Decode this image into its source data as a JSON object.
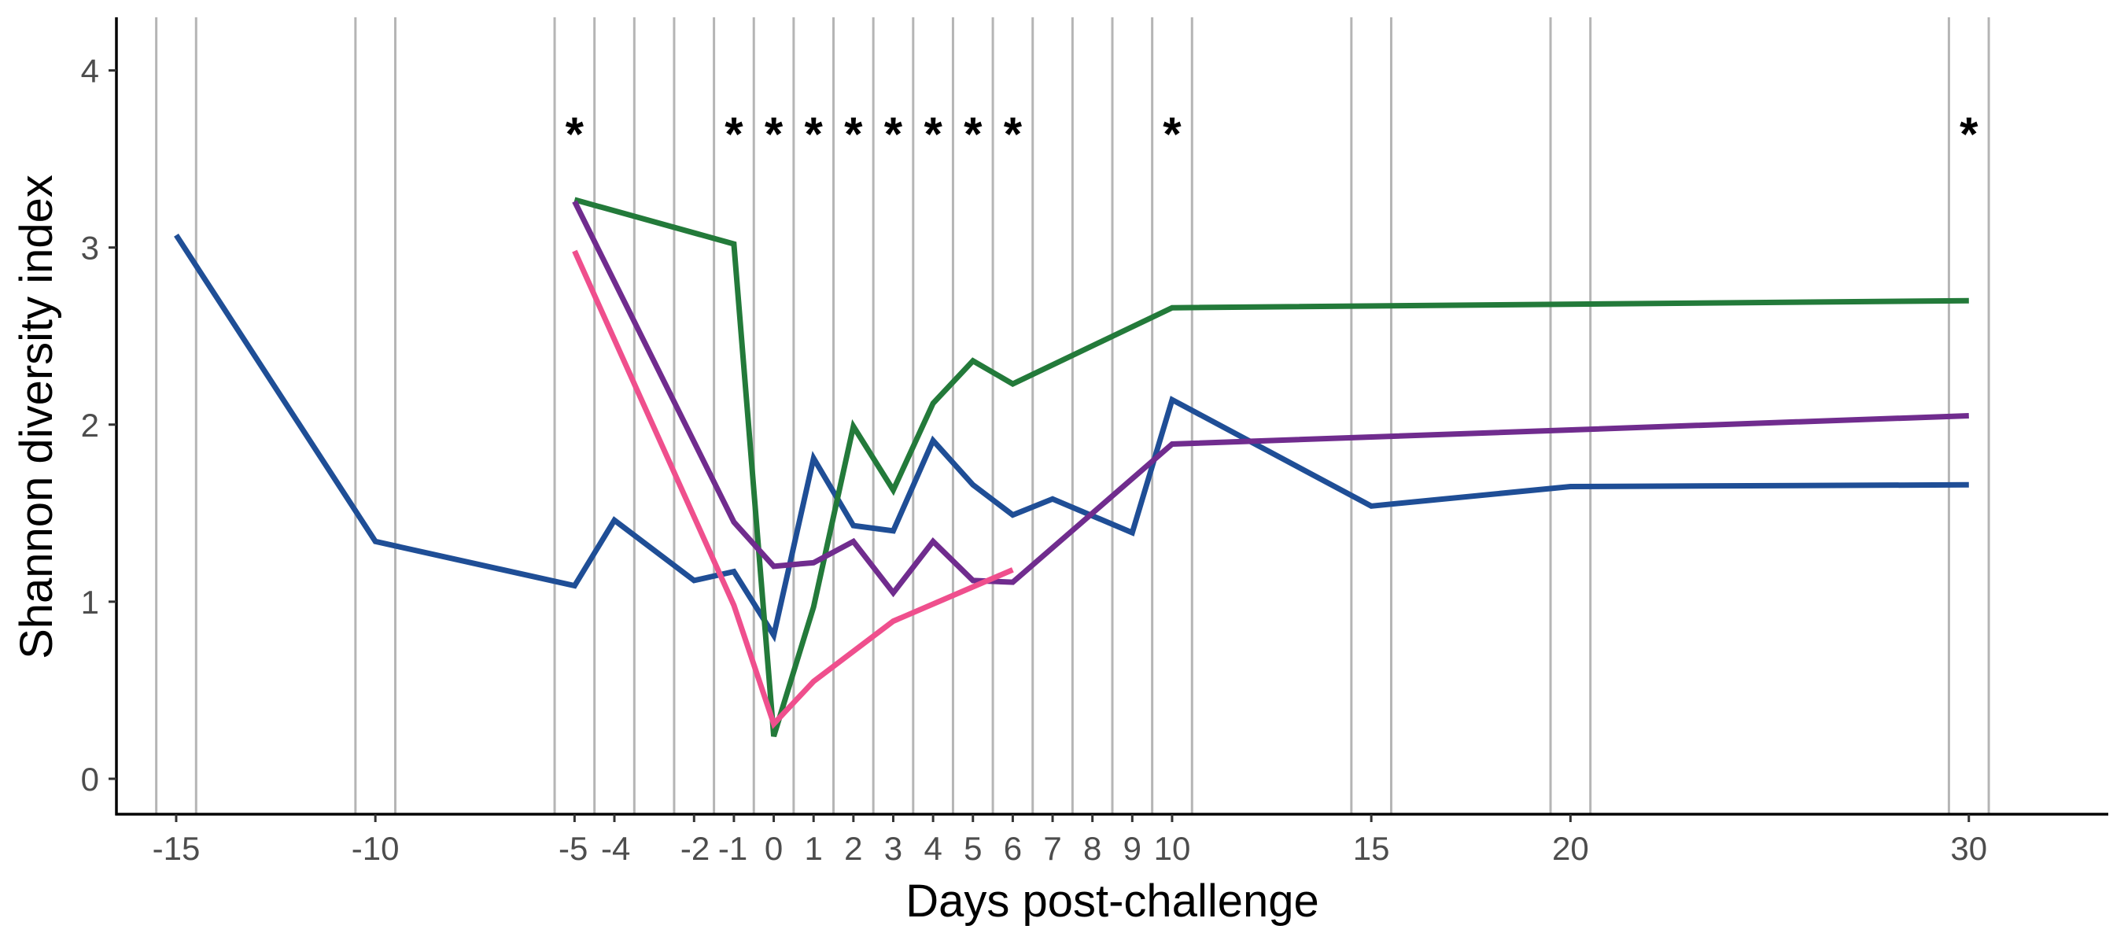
{
  "chart_data": {
    "type": "line",
    "title": "",
    "xlabel": "Days post-challenge",
    "ylabel": "Shannon diversity index",
    "xlim": [
      -16.5,
      33.5
    ],
    "ylim": [
      -0.2,
      4.3
    ],
    "x_axis_ticks": [
      {
        "label": "-15",
        "pos": -15
      },
      {
        "label": "-10",
        "pos": -10
      },
      {
        "label": "-5",
        "pos": -5
      },
      {
        "label": "-4",
        "pos": -4
      },
      {
        "label": "-2",
        "pos": -2
      },
      {
        "label": "-1",
        "pos": -1
      },
      {
        "label": "0",
        "pos": 0
      },
      {
        "label": "1",
        "pos": 1
      },
      {
        "label": "2",
        "pos": 2
      },
      {
        "label": "3",
        "pos": 3
      },
      {
        "label": "4",
        "pos": 4
      },
      {
        "label": "5",
        "pos": 5
      },
      {
        "label": "6",
        "pos": 6
      },
      {
        "label": "7",
        "pos": 7
      },
      {
        "label": "8",
        "pos": 8
      },
      {
        "label": "9",
        "pos": 9
      },
      {
        "label": "10",
        "pos": 10
      },
      {
        "label": "15",
        "pos": 15
      },
      {
        "label": "20",
        "pos": 20
      },
      {
        "label": "30",
        "pos": 30
      }
    ],
    "y_axis_ticks": [
      "0",
      "1",
      "2",
      "3",
      "4"
    ],
    "grid": "vertical lines bracketing each sampling day",
    "gridline_positions": [
      -15.5,
      -14.5,
      -10.5,
      -9.5,
      -5.5,
      -4.5,
      -3.5,
      -2.5,
      -1.5,
      -0.5,
      0.5,
      1.5,
      2.5,
      3.5,
      4.5,
      5.5,
      6.5,
      7.5,
      8.5,
      9.5,
      10.5,
      14.5,
      15.5,
      19.5,
      20.5,
      29.5,
      30.5
    ],
    "significance_marker": "*",
    "significance_days": [
      -5,
      -1,
      0,
      1,
      2,
      3,
      4,
      5,
      6,
      10,
      30
    ],
    "significance_y": 3.78,
    "series": [
      {
        "color": "#1f4e96",
        "points": [
          [
            -15,
            3.07
          ],
          [
            -10,
            1.34
          ],
          [
            -5,
            1.09
          ],
          [
            -4,
            1.46
          ],
          [
            -2,
            1.12
          ],
          [
            -1,
            1.17
          ],
          [
            0,
            0.81
          ],
          [
            1,
            1.81
          ],
          [
            2,
            1.43
          ],
          [
            3,
            1.4
          ],
          [
            4,
            1.91
          ],
          [
            5,
            1.66
          ],
          [
            6,
            1.49
          ],
          [
            7,
            1.58
          ],
          [
            9,
            1.39
          ],
          [
            10,
            2.14
          ],
          [
            15,
            1.54
          ],
          [
            20,
            1.65
          ],
          [
            30,
            1.66
          ]
        ]
      },
      {
        "color": "#237a3a",
        "points": [
          [
            -5,
            3.27
          ],
          [
            -1,
            3.02
          ],
          [
            0,
            0.24
          ],
          [
            1,
            0.97
          ],
          [
            2,
            1.99
          ],
          [
            3,
            1.63
          ],
          [
            4,
            2.12
          ],
          [
            5,
            2.36
          ],
          [
            6,
            2.23
          ],
          [
            10,
            2.66
          ],
          [
            30,
            2.7
          ]
        ]
      },
      {
        "color": "#702c8e",
        "points": [
          [
            -5,
            3.26
          ],
          [
            -1,
            1.45
          ],
          [
            0,
            1.2
          ],
          [
            1,
            1.22
          ],
          [
            2,
            1.34
          ],
          [
            3,
            1.05
          ],
          [
            4,
            1.34
          ],
          [
            5,
            1.12
          ],
          [
            6,
            1.11
          ],
          [
            10,
            1.89
          ],
          [
            30,
            2.05
          ]
        ]
      },
      {
        "color": "#ef4f8d",
        "points": [
          [
            -5,
            2.98
          ],
          [
            -1,
            0.98
          ],
          [
            0,
            0.31
          ],
          [
            1,
            0.55
          ],
          [
            3,
            0.89
          ],
          [
            6,
            1.18
          ]
        ]
      }
    ],
    "gridline_color": "#b5b5b5",
    "axis_color": "#000000"
  }
}
